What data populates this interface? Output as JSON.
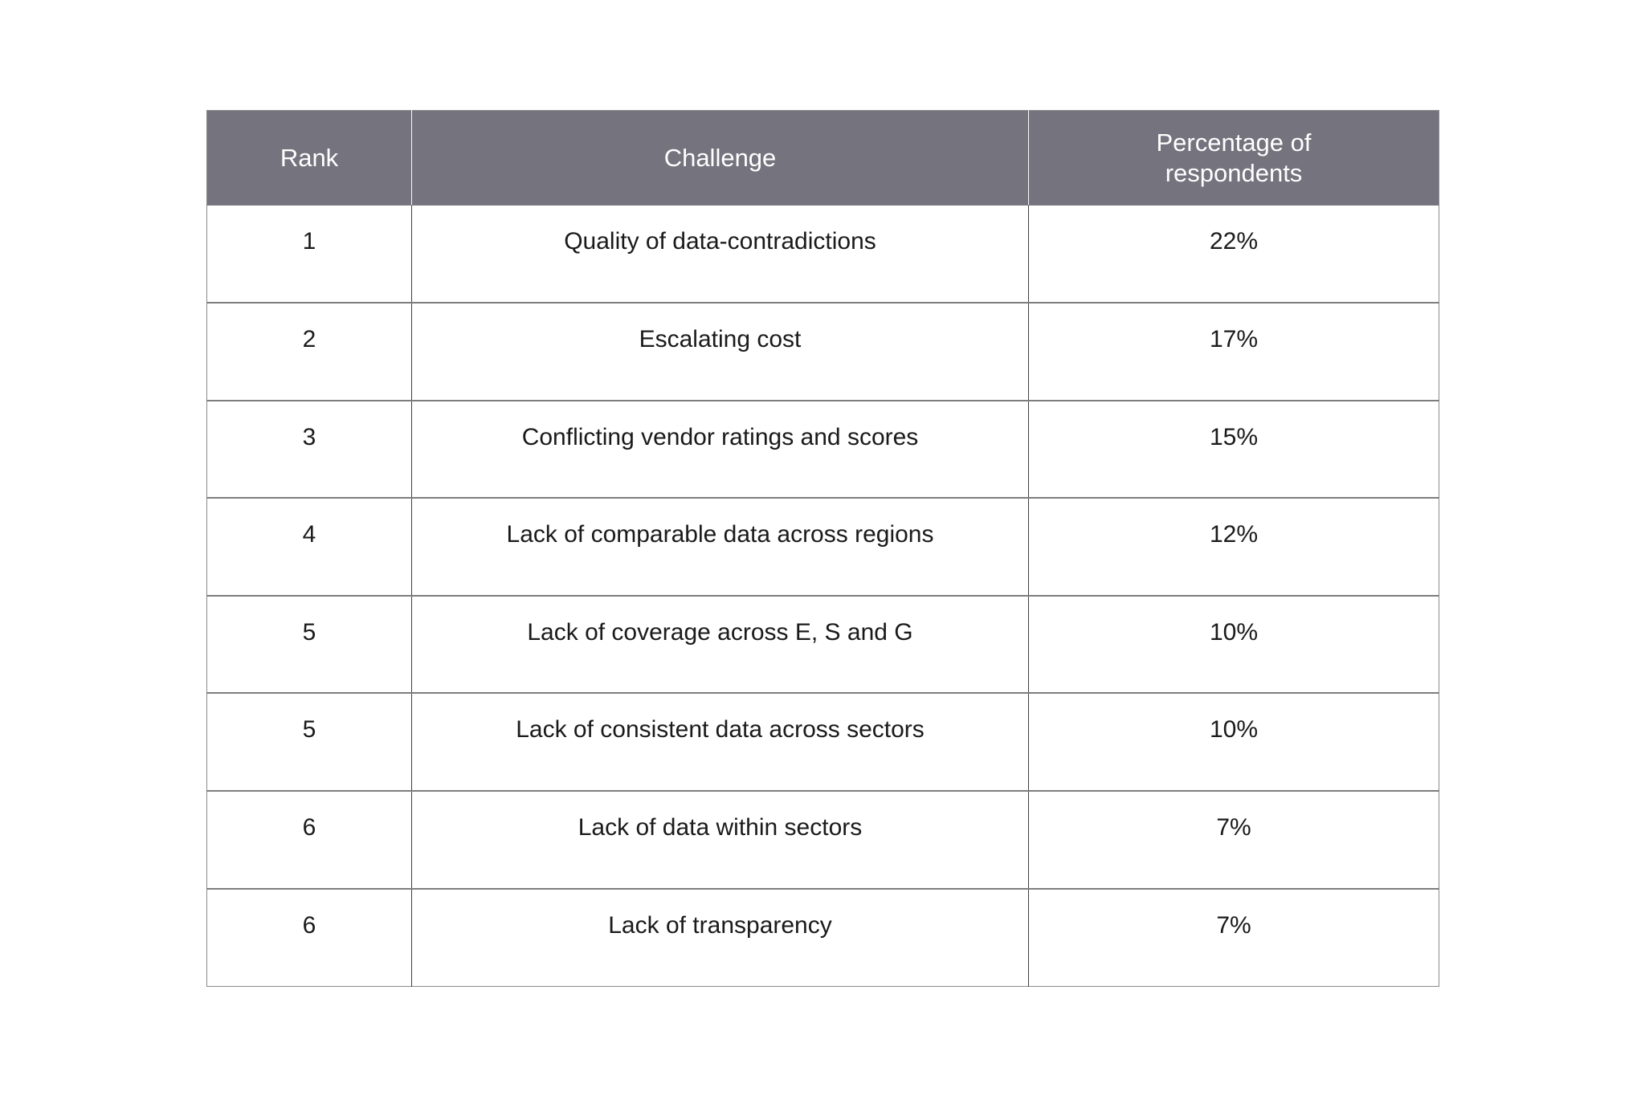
{
  "page": {
    "background": "#FFFFFF"
  },
  "table": {
    "columns": [
      {
        "label": "Rank"
      },
      {
        "label": "Challenge"
      },
      {
        "label": "Percentage of\nrespondents"
      }
    ],
    "rows": [
      {
        "rank": "1",
        "challenge": "Quality of data-contradictions",
        "percentage": "22%"
      },
      {
        "rank": "2",
        "challenge": "Escalating cost",
        "percentage": "17%"
      },
      {
        "rank": "3",
        "challenge": "Conflicting vendor ratings and scores",
        "percentage": "15%"
      },
      {
        "rank": "4",
        "challenge": "Lack of comparable data across regions",
        "percentage": "12%"
      },
      {
        "rank": "5",
        "challenge": "Lack of coverage across E, S and G",
        "percentage": "10%"
      },
      {
        "rank": "5",
        "challenge": "Lack of consistent data across sectors",
        "percentage": "10%"
      },
      {
        "rank": "6",
        "challenge": "Lack of data within sectors",
        "percentage": "7%"
      },
      {
        "rank": "6",
        "challenge": "Lack of transparency",
        "percentage": "7%"
      }
    ],
    "colors": {
      "header_bg": "#74737E",
      "header_text": "#FFFFFF",
      "body_bg": "#FFFFFF",
      "body_text": "#1A1A1A",
      "grid_horizontal": "#7D7D7D",
      "grid_vertical": "#3F3F3F",
      "outer_border": "#8A8A8A",
      "header_divider": "#FAFAFA"
    }
  },
  "chart_data": {
    "type": "table",
    "title": "",
    "columns": [
      "Rank",
      "Challenge",
      "Percentage of respondents"
    ],
    "rows": [
      [
        1,
        "Quality of data-contradictions",
        "22%"
      ],
      [
        2,
        "Escalating cost",
        "17%"
      ],
      [
        3,
        "Conflicting vendor ratings and scores",
        "15%"
      ],
      [
        4,
        "Lack of comparable data across regions",
        "12%"
      ],
      [
        5,
        "Lack of coverage across E, S and G",
        "10%"
      ],
      [
        5,
        "Lack of consistent data across sectors",
        "10%"
      ],
      [
        6,
        "Lack of data within sectors",
        "7%"
      ],
      [
        6,
        "Lack of transparency",
        "7%"
      ]
    ],
    "values": [
      22,
      17,
      15,
      12,
      10,
      10,
      7,
      7
    ],
    "value_unit": "%",
    "layout_hints": {
      "header_background": "#74737E",
      "grid": true,
      "text_align": "center"
    }
  }
}
